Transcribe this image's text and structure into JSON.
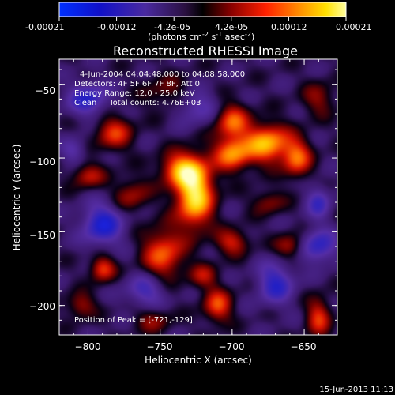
{
  "colorbar": {
    "tick_labels": [
      "-0.00021",
      "-0.00012",
      "-4.2e-05",
      "4.2e-05",
      "0.00012",
      "0.00021"
    ],
    "range": [
      -0.00021,
      0.00021
    ],
    "unit_main": "(photons cm",
    "unit_sup1": "-2",
    "unit_mid": " s",
    "unit_sup2": "-1",
    "unit_end": " asec",
    "unit_sup3": "-2",
    "unit_close": ")"
  },
  "chart_data": {
    "type": "heatmap",
    "title": "Reconstructed RHESSI Image",
    "xlabel": "Heliocentric X (arcsec)",
    "ylabel": "Heliocentric Y (arcsec)",
    "xlim": [
      -820,
      -627
    ],
    "ylim": [
      -220,
      -33
    ],
    "x_ticks": [
      -800,
      -750,
      -700,
      -650
    ],
    "x_tick_labels": [
      "−800",
      "−750",
      "−700",
      "−650"
    ],
    "y_ticks": [
      -50,
      -100,
      -150,
      -200
    ],
    "y_tick_labels": [
      "−50",
      "−100",
      "−150",
      "−200"
    ],
    "annotations": [
      "4-Jun-2004 04:04:48.000 to 04:08:58.000",
      "Detectors: 4F 5F 6F 7F 8F, Att 0",
      "Energy Range: 12.0 - 25.0 keV",
      "Clean     Total counts: 4.76E+03"
    ],
    "peak_label": "Position of Peak = [-721,-129]",
    "peak": [
      -721,
      -129
    ],
    "colormap": "rhessi-heat",
    "sources": [
      {
        "x": -726,
        "y": -125,
        "amp": 1.0,
        "sx": 9,
        "sy": 15
      },
      {
        "x": -735,
        "y": -108,
        "amp": 0.7,
        "sx": 10,
        "sy": 8
      },
      {
        "x": -700,
        "y": -97,
        "amp": 0.7,
        "sx": 9,
        "sy": 8
      },
      {
        "x": -676,
        "y": -90,
        "amp": 0.82,
        "sx": 11,
        "sy": 9
      },
      {
        "x": -700,
        "y": -75,
        "amp": 0.6,
        "sx": 8,
        "sy": 8
      },
      {
        "x": -655,
        "y": -100,
        "amp": 0.6,
        "sx": 7,
        "sy": 9
      },
      {
        "x": -748,
        "y": -165,
        "amp": 0.6,
        "sx": 10,
        "sy": 12
      },
      {
        "x": -790,
        "y": -175,
        "amp": 0.55,
        "sx": 6,
        "sy": 6
      },
      {
        "x": -782,
        "y": -83,
        "amp": 0.5,
        "sx": 9,
        "sy": 8
      },
      {
        "x": -800,
        "y": -112,
        "amp": 0.4,
        "sx": 8,
        "sy": 6
      },
      {
        "x": -700,
        "y": -157,
        "amp": 0.45,
        "sx": 8,
        "sy": 6
      },
      {
        "x": -770,
        "y": -125,
        "amp": 0.35,
        "sx": 9,
        "sy": 8
      },
      {
        "x": -710,
        "y": -200,
        "amp": 0.55,
        "sx": 7,
        "sy": 8
      },
      {
        "x": -640,
        "y": -208,
        "amp": 0.5,
        "sx": 6,
        "sy": 9
      },
      {
        "x": -660,
        "y": -160,
        "amp": 0.4,
        "sx": 7,
        "sy": 6
      },
      {
        "x": -805,
        "y": -200,
        "amp": 0.35,
        "sx": 7,
        "sy": 6
      },
      {
        "x": -745,
        "y": -55,
        "amp": 0.25,
        "sx": 12,
        "sy": 8
      },
      {
        "x": -675,
        "y": -130,
        "amp": 0.3,
        "sx": 8,
        "sy": 6
      },
      {
        "x": -755,
        "y": -210,
        "amp": 0.3,
        "sx": 9,
        "sy": 6
      },
      {
        "x": -720,
        "y": -180,
        "amp": 0.35,
        "sx": 7,
        "sy": 6
      },
      {
        "x": -640,
        "y": -60,
        "amp": 0.3,
        "sx": 8,
        "sy": 8
      }
    ],
    "negatives": [
      {
        "x": -790,
        "y": -145,
        "amp": 0.6,
        "sx": 10,
        "sy": 10
      },
      {
        "x": -800,
        "y": -60,
        "amp": 0.5,
        "sx": 10,
        "sy": 8
      },
      {
        "x": -640,
        "y": -160,
        "amp": 0.5,
        "sx": 9,
        "sy": 8
      },
      {
        "x": -670,
        "y": -185,
        "amp": 0.5,
        "sx": 9,
        "sy": 10
      },
      {
        "x": -760,
        "y": -190,
        "amp": 0.4,
        "sx": 10,
        "sy": 8
      },
      {
        "x": -725,
        "y": -65,
        "amp": 0.35,
        "sx": 10,
        "sy": 8
      },
      {
        "x": -640,
        "y": -130,
        "amp": 0.4,
        "sx": 6,
        "sy": 8
      },
      {
        "x": -810,
        "y": -95,
        "amp": 0.3,
        "sx": 6,
        "sy": 6
      }
    ]
  },
  "footer": {
    "timestamp": "15-Jun-2013 11:13"
  }
}
